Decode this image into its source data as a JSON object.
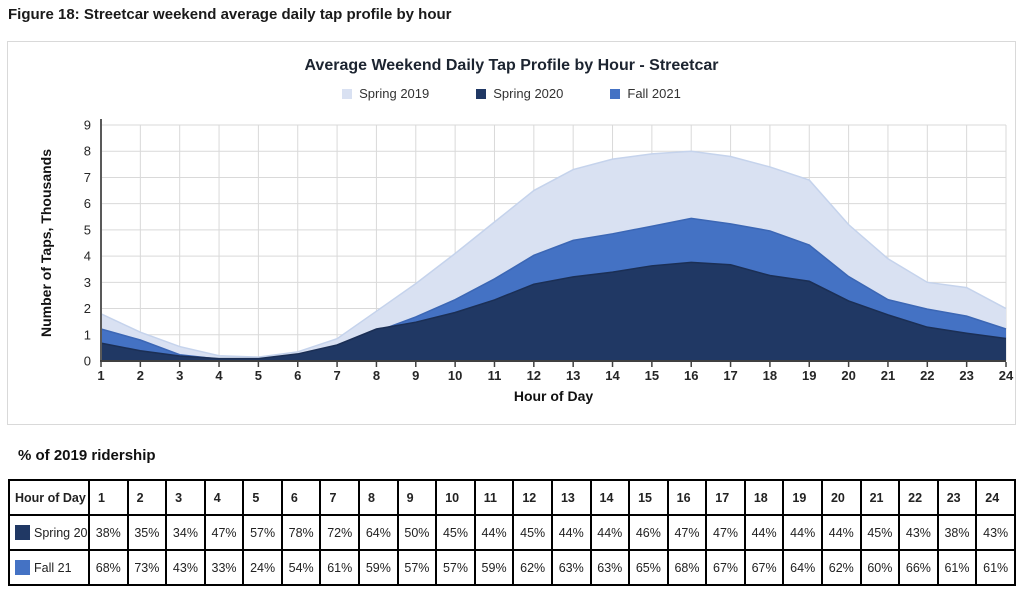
{
  "figure_title": "Figure 18: Streetcar weekend average daily tap profile by hour",
  "chart_data": {
    "type": "area",
    "title": "Average Weekend Daily Tap Profile by Hour - Streetcar",
    "xlabel": "Hour of Day",
    "ylabel": "Number of Taps, Thousands",
    "x": [
      1,
      2,
      3,
      4,
      5,
      6,
      7,
      8,
      9,
      10,
      11,
      12,
      13,
      14,
      15,
      16,
      17,
      18,
      19,
      20,
      21,
      22,
      23,
      24
    ],
    "y_ticks": [
      0,
      1,
      2,
      3,
      4,
      5,
      6,
      7,
      8,
      9
    ],
    "ylim": [
      0,
      9
    ],
    "grid": true,
    "legend_position": "top",
    "z_order": [
      "Spring 2019",
      "Fall 2021",
      "Spring 2020"
    ],
    "series": [
      {
        "name": "Spring 2019",
        "color": "#d9e1f2",
        "edge_color": "#c5d3ec",
        "values": [
          1.8,
          1.1,
          0.55,
          0.2,
          0.15,
          0.35,
          0.85,
          1.9,
          2.95,
          4.1,
          5.3,
          6.5,
          7.3,
          7.7,
          7.9,
          8.0,
          7.8,
          7.4,
          6.9,
          5.2,
          3.9,
          3.0,
          2.8,
          2.0
        ]
      },
      {
        "name": "Spring 2020",
        "color": "#203864",
        "edge_color": "#1b2f55",
        "values": [
          0.68,
          0.39,
          0.19,
          0.09,
          0.09,
          0.27,
          0.61,
          1.22,
          1.48,
          1.85,
          2.33,
          2.93,
          3.21,
          3.39,
          3.63,
          3.76,
          3.67,
          3.26,
          3.04,
          2.29,
          1.76,
          1.29,
          1.06,
          0.86
        ]
      },
      {
        "name": "Fall 2021",
        "color": "#4472c4",
        "edge_color": "#3c67b5",
        "values": [
          1.22,
          0.8,
          0.24,
          0.07,
          0.04,
          0.19,
          0.52,
          1.12,
          1.68,
          2.34,
          3.13,
          4.03,
          4.6,
          4.85,
          5.14,
          5.44,
          5.23,
          4.96,
          4.42,
          3.22,
          2.34,
          1.98,
          1.71,
          1.22
        ]
      }
    ]
  },
  "ridership_table": {
    "heading": "% of 2019 ridership",
    "corner_label": "Hour of Day",
    "hours": [
      "1",
      "2",
      "3",
      "4",
      "5",
      "6",
      "7",
      "8",
      "9",
      "10",
      "11",
      "12",
      "13",
      "14",
      "15",
      "16",
      "17",
      "18",
      "19",
      "20",
      "21",
      "22",
      "23",
      "24"
    ],
    "rows": [
      {
        "label": "Spring 20",
        "swatch_color": "#203864",
        "values": [
          "38%",
          "35%",
          "34%",
          "47%",
          "57%",
          "78%",
          "72%",
          "64%",
          "50%",
          "45%",
          "44%",
          "45%",
          "44%",
          "44%",
          "46%",
          "47%",
          "47%",
          "44%",
          "44%",
          "44%",
          "45%",
          "43%",
          "38%",
          "43%"
        ]
      },
      {
        "label": "Fall 21",
        "swatch_color": "#4472c4",
        "values": [
          "68%",
          "73%",
          "43%",
          "33%",
          "24%",
          "54%",
          "61%",
          "59%",
          "57%",
          "57%",
          "59%",
          "62%",
          "63%",
          "63%",
          "65%",
          "68%",
          "67%",
          "67%",
          "64%",
          "62%",
          "60%",
          "66%",
          "61%",
          "61%"
        ]
      }
    ]
  }
}
